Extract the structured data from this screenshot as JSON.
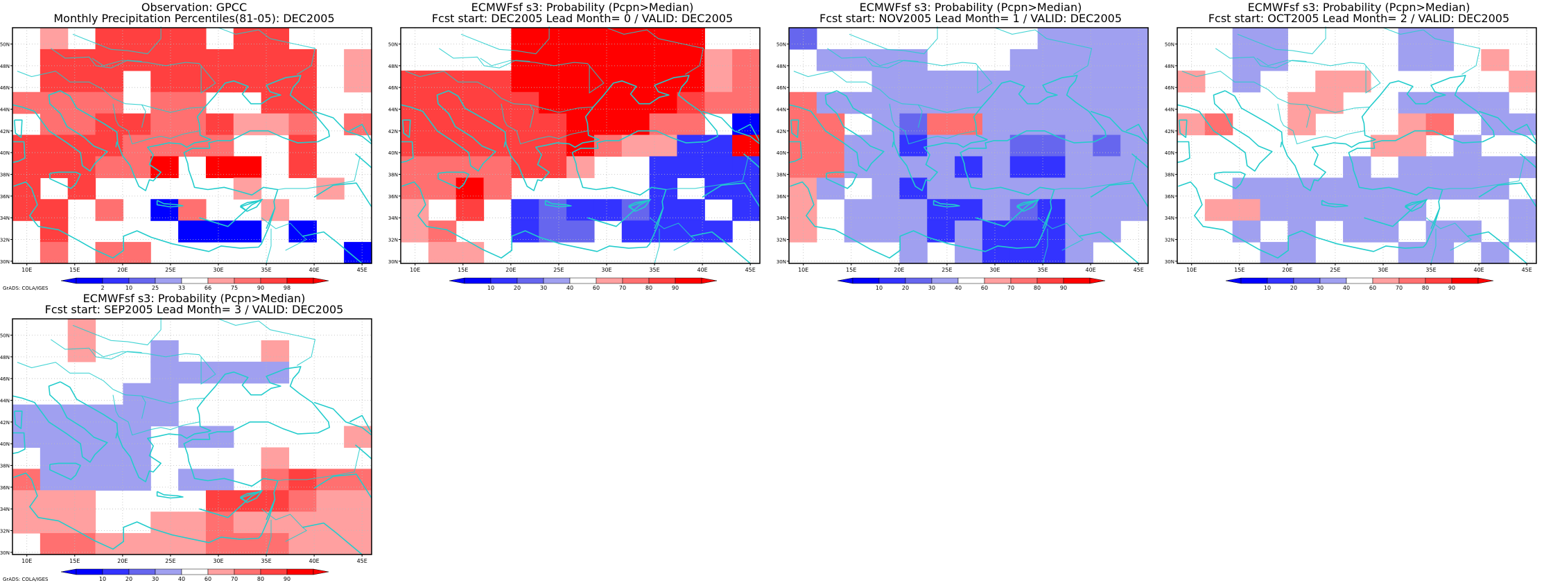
{
  "palette": {
    "blue": [
      "#0000ff",
      "#3333ff",
      "#6666ee",
      "#a0a0f0"
    ],
    "red": [
      "#ffa0a0",
      "#ff7070",
      "#ff4040",
      "#ff0000"
    ],
    "grid": "#bbbbbb",
    "coast": "#22cccc",
    "frame": "#000000"
  },
  "axes": {
    "lon_ticks": [
      "10E",
      "15E",
      "20E",
      "25E",
      "30E",
      "35E",
      "40E",
      "45E"
    ],
    "lat_ticks": [
      "30N",
      "32N",
      "34N",
      "36N",
      "38N",
      "40N",
      "42N",
      "44N",
      "46N",
      "48N",
      "50N"
    ]
  },
  "panels": [
    {
      "title_line1": "Observation: GPCC",
      "title_line2": "Monthly Precipitation Percentiles(81-05): DEC2005",
      "colorbar_labels": [
        "2",
        "10",
        "25",
        "33",
        "66",
        "75",
        "90",
        "98"
      ],
      "footer": "GrADS: COLA/IGES",
      "grid": [
        "0a0cccc0cc000",
        "0cccccccccc0a",
        "0ccc0cccccc0a",
        "bbbb0bb00cc00",
        "0bbccbbcaab0b",
        "ccccbbbb00c00",
        "cccbbd0dd0c00",
        "c0c00000a00a0",
        "cc0b0eb00a000",
        "0c0000eee0e00",
        "0b0bb0000000e"
      ]
    },
    {
      "title_line1": "ECMWFsf s3: Probability (Pcpn>Median)",
      "title_line2": "Fcst start: DEC2005  Lead Month= 0 / VALID: DEC2005",
      "colorbar_labels": [
        "10",
        "20",
        "30",
        "40",
        "60",
        "70",
        "80",
        "90"
      ],
      "footer": "",
      "grid": [
        "0000ddddddd00",
        "0000dddddddab",
        "ccccdddddddab",
        "cccccdddddcbb",
        "ccccccdddbb0e",
        "ccccccdbaaffd",
        "bbbbcca00ffff",
        "bbdb00000f0ff",
        "a0c0fgffgff0f",
        "ab00fgg0ffff0",
        "0aa0000000000"
      ]
    },
    {
      "title_line1": "ECMWFsf s3: Probability (Pcpn>Median)",
      "title_line2": "Fcst start: NOV2005  Lead Month= 1 / VALID: DEC2005",
      "colorbar_labels": [
        "10",
        "20",
        "30",
        "40",
        "60",
        "70",
        "80",
        "90"
      ],
      "footer": "",
      "grid": [
        "g00000000hhhh",
        "0hhhh000hhhhh",
        "000hhhhhhhhhh",
        "bhhhhhhhhhhhh",
        "bb0hgbbhhhhhh",
        "bbhhfhhhgghgh",
        "bbhhhhfhffhhh",
        "ah0hfhhhhhhhh",
        "a0hhhffhgfhhh",
        "a0hhhfhfffhh0",
        "0000h0hfffh00"
      ]
    },
    {
      "title_line1": "ECMWFsf s3: Probability (Pcpn>Median)",
      "title_line2": "Fcst start: OCT2005  Lead Month= 2 / VALID: DEC2005",
      "colorbar_labels": [
        "10",
        "20",
        "30",
        "40",
        "60",
        "70",
        "80",
        "90"
      ],
      "footer": "",
      "grid": [
        "00ii0000ii000",
        "00ii0000ii0a0",
        "a0h00aa00000a",
        "0000aa00hhhh0",
        "ab00a000ab0ih",
        "0000000aa0h00",
        "000000h0hhhii",
        "00hhhhhhhhhh0",
        "0aahhiihh000h",
        "00h0h0ih0hi0h",
        "000hh000hh0h0"
      ]
    },
    {
      "title_line1": "ECMWFsf s3: Probability (Pcpn>Median)",
      "title_line2": "Fcst start: SEP2005  Lead Month= 3 / VALID: DEC2005",
      "colorbar_labels": [
        "10",
        "20",
        "30",
        "40",
        "60",
        "70",
        "80",
        "90"
      ],
      "footer": "GrADS: COLA/IGES",
      "grid": [
        "00a0000000000",
        "00a00h000a000",
        "00000hhhhh000",
        "0000hh0000000",
        "hhhhhh0000000",
        "ihhhh0hh0000a",
        "0hhhh0000a000",
        "bhhhh0hh0bcbb",
        "aaa0000cccbaa",
        "aaa00aabaaaaa",
        "0bbaaaabbbaaa"
      ]
    }
  ]
}
